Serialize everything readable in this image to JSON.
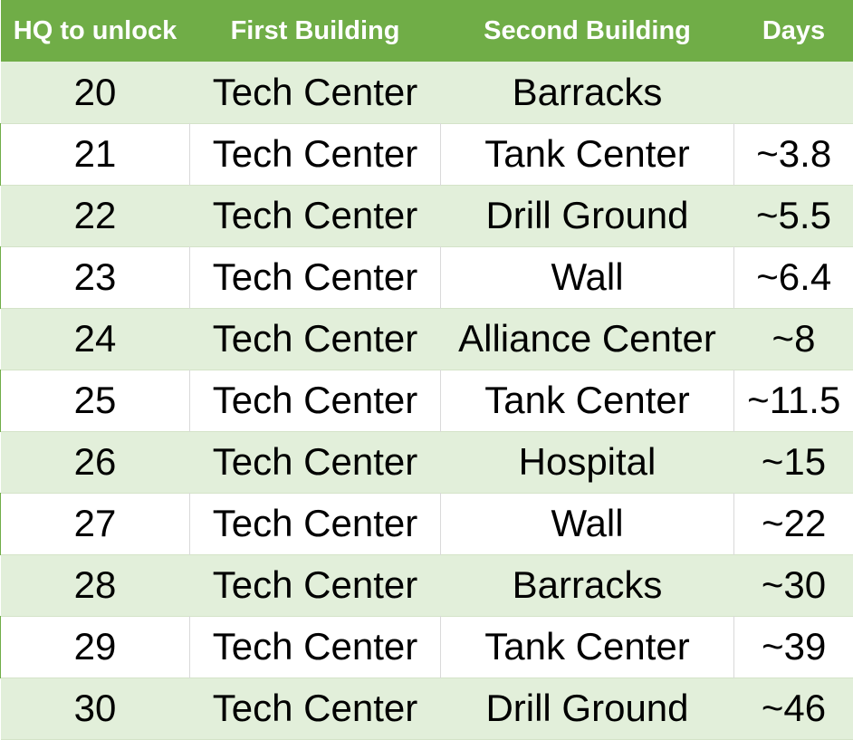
{
  "header": {
    "col1": "HQ to unlock",
    "col2": "First Building",
    "col3": "Second Building",
    "col4": "Days"
  },
  "rows": [
    {
      "hq": "20",
      "first": "Tech Center",
      "second": "Barracks",
      "days": ""
    },
    {
      "hq": "21",
      "first": "Tech Center",
      "second": "Tank Center",
      "days": "~3.8"
    },
    {
      "hq": "22",
      "first": "Tech Center",
      "second": "Drill Ground",
      "days": "~5.5"
    },
    {
      "hq": "23",
      "first": "Tech Center",
      "second": "Wall",
      "days": "~6.4"
    },
    {
      "hq": "24",
      "first": "Tech Center",
      "second": "Alliance Center",
      "days": "~8"
    },
    {
      "hq": "25",
      "first": "Tech Center",
      "second": "Tank Center",
      "days": "~11.5"
    },
    {
      "hq": "26",
      "first": "Tech Center",
      "second": "Hospital",
      "days": "~15"
    },
    {
      "hq": "27",
      "first": "Tech Center",
      "second": "Wall",
      "days": "~22"
    },
    {
      "hq": "28",
      "first": "Tech Center",
      "second": "Barracks",
      "days": "~30"
    },
    {
      "hq": "29",
      "first": "Tech Center",
      "second": "Tank Center",
      "days": "~39"
    },
    {
      "hq": "30",
      "first": "Tech Center",
      "second": "Drill Ground",
      "days": "~46"
    }
  ],
  "colors": {
    "header_bg": "#70ad47",
    "band_bg": "#e2efda"
  }
}
